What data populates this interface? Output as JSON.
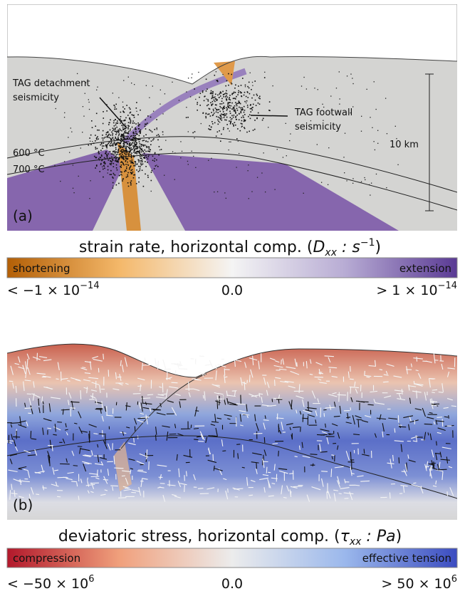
{
  "panel_a": {
    "label": "(a)",
    "annotations": {
      "detachment": [
        "TAG detachment",
        "seismicity"
      ],
      "footwall": [
        "TAG footwall",
        "seismicity"
      ],
      "isotherm_600": "600 °C",
      "isotherm_700": "700 °C",
      "scale": "10 km"
    },
    "colorbar": {
      "title": {
        "text": "strain rate, horizontal comp. (",
        "symbol": "D",
        "subscript": "xx",
        "unit": " : s",
        "superscript": "−1",
        "close": ")"
      },
      "left_name": "shortening",
      "right_name": "extension",
      "ticks": [
        {
          "base": "< −1 × 10",
          "exponent": "−14"
        },
        {
          "base": "0.0"
        },
        {
          "base": "> 1 × 10",
          "exponent": "−14"
        }
      ]
    }
  },
  "panel_b": {
    "label": "(b)",
    "colorbar": {
      "title": {
        "text": "deviatoric stress, horizontal comp. (",
        "symbol": "τ",
        "subscript": "xx",
        "unit": " : Pa",
        "close": ")"
      },
      "left_name": "compression",
      "right_name": "effective tension",
      "ticks": [
        {
          "base": "< −50 × 10",
          "exponent": "6"
        },
        {
          "base": "0.0"
        },
        {
          "base": "> 50 × 10",
          "exponent": "6"
        }
      ]
    }
  }
}
